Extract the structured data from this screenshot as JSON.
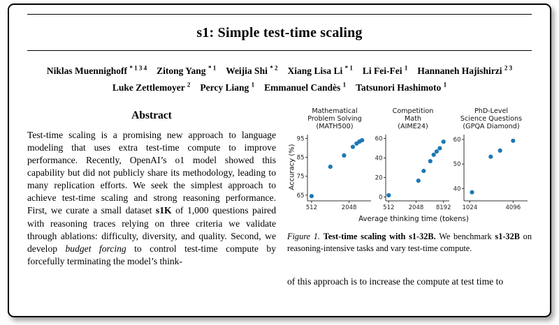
{
  "paper": {
    "title": "s1: Simple test-time scaling",
    "authors_line1": [
      {
        "name": "Niklas Muennighoff",
        "sup": "* 1 3 4"
      },
      {
        "name": "Zitong Yang",
        "sup": "* 1"
      },
      {
        "name": "Weijia Shi",
        "sup": "* 2"
      },
      {
        "name": "Xiang Lisa Li",
        "sup": "* 1"
      },
      {
        "name": "Li Fei-Fei",
        "sup": "1"
      },
      {
        "name": "Hannaneh Hajishirzi",
        "sup": "2 3"
      }
    ],
    "authors_line2": [
      {
        "name": "Luke Zettlemoyer",
        "sup": "2"
      },
      {
        "name": "Percy Liang",
        "sup": "1"
      },
      {
        "name": "Emmanuel Candès",
        "sup": "1"
      },
      {
        "name": "Tatsunori Hashimoto",
        "sup": "1"
      }
    ],
    "abstract": {
      "heading": "Abstract",
      "parts": [
        {
          "text": "Test-time scaling is a promising new approach to language modeling that uses extra test-time compute to improve performance. Recently, OpenAI’s o1 model showed this capability but did not publicly share its methodology, leading to many replication efforts. We seek the simplest approach to achieve test-time scaling and strong reasoning performance. First, we curate a small dataset ",
          "style": "normal"
        },
        {
          "text": "s1K",
          "style": "bold"
        },
        {
          "text": " of 1,000 questions paired with reasoning traces relying on three criteria we validate through ablations: difficulty, diversity, and quality. Second, we develop ",
          "style": "normal"
        },
        {
          "text": "budget forcing",
          "style": "italic"
        },
        {
          "text": " to control test-time compute by forcefully terminating the model’s think-",
          "style": "normal"
        }
      ]
    },
    "figure": {
      "ylabel": "Accuracy (%)",
      "xlabel": "Average thinking time (tokens)",
      "caption_parts": [
        {
          "text": "Figure 1. ",
          "style": "italic"
        },
        {
          "text": "Test-time scaling with s1-32B.",
          "style": "bold"
        },
        {
          "text": " We benchmark ",
          "style": "normal"
        },
        {
          "text": "s1-32B",
          "style": "bold"
        },
        {
          "text": " on reasoning-intensive tasks and vary test-time compute.",
          "style": "normal"
        }
      ]
    },
    "body_fragment": "of this approach is to increase the compute at test time to"
  },
  "chart_style": {
    "dot_color": "#1f77b4",
    "axis_color": "#333333",
    "label_color": "#222222"
  },
  "chart_data": [
    {
      "type": "scatter",
      "title_lines": [
        "Mathematical",
        "Problem Solving",
        "(MATH500)"
      ],
      "x_scale": "log",
      "xlim": [
        440,
        4600
      ],
      "ylim": [
        62,
        97
      ],
      "xticks": [
        512,
        2048
      ],
      "yticks": [
        65,
        75,
        85,
        95
      ],
      "xlabel_shared": "Average thinking time (tokens)",
      "ylabel": "Accuracy (%)",
      "points": [
        [
          512,
          64.5
        ],
        [
          1024,
          80
        ],
        [
          1700,
          86
        ],
        [
          2350,
          90.5
        ],
        [
          2700,
          92.3
        ],
        [
          3000,
          93.3
        ],
        [
          3300,
          94
        ]
      ]
    },
    {
      "type": "scatter",
      "title_lines": [
        "Competition",
        "Math",
        "(AIME24)"
      ],
      "x_scale": "log",
      "xlim": [
        440,
        11000
      ],
      "ylim": [
        -4,
        64
      ],
      "xticks": [
        512,
        2048,
        8192
      ],
      "yticks": [
        0,
        20,
        40,
        60
      ],
      "points": [
        [
          512,
          1.7
        ],
        [
          2300,
          16.7
        ],
        [
          3000,
          26.7
        ],
        [
          4200,
          36.7
        ],
        [
          5000,
          43.3
        ],
        [
          5800,
          46.7
        ],
        [
          6800,
          50
        ],
        [
          8192,
          56.7
        ]
      ]
    },
    {
      "type": "scatter",
      "title_lines": [
        "PhD-Level",
        "Science Questions",
        "(GPQA Diamond)"
      ],
      "x_scale": "log",
      "xlim": [
        850,
        6500
      ],
      "ylim": [
        35,
        62
      ],
      "xticks": [
        1024,
        4096
      ],
      "yticks": [
        40,
        50,
        60
      ],
      "points": [
        [
          1100,
          38.5
        ],
        [
          2000,
          53
        ],
        [
          2700,
          55.5
        ],
        [
          4096,
          59.5
        ]
      ]
    }
  ]
}
